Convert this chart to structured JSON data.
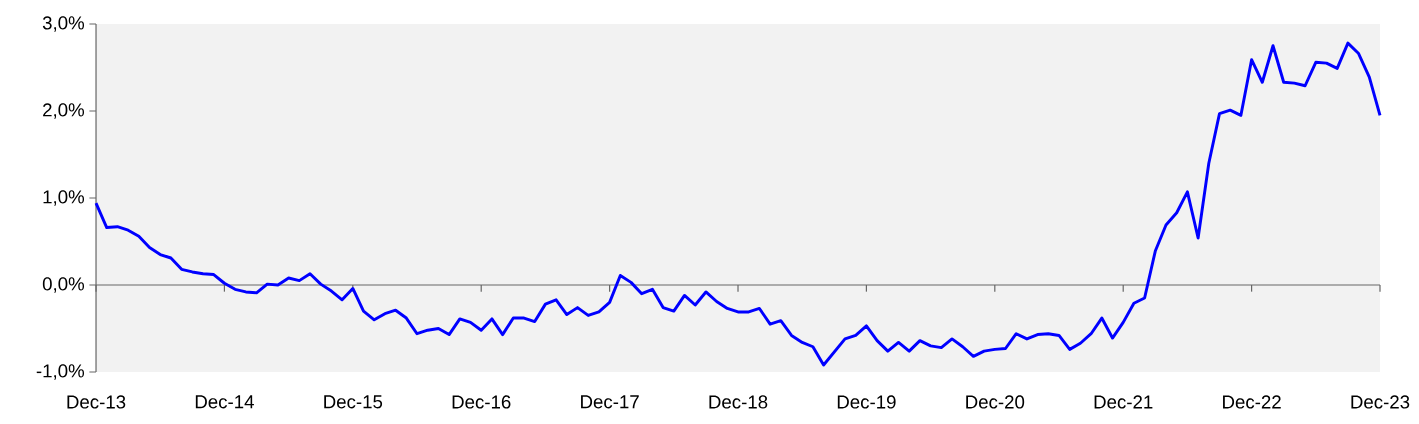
{
  "chart_data": {
    "type": "line",
    "x": [
      "2013-12",
      "2014-01",
      "2014-02",
      "2014-03",
      "2014-04",
      "2014-05",
      "2014-06",
      "2014-07",
      "2014-08",
      "2014-09",
      "2014-10",
      "2014-11",
      "2014-12",
      "2015-01",
      "2015-02",
      "2015-03",
      "2015-04",
      "2015-05",
      "2015-06",
      "2015-07",
      "2015-08",
      "2015-09",
      "2015-10",
      "2015-11",
      "2015-12",
      "2016-01",
      "2016-02",
      "2016-03",
      "2016-04",
      "2016-05",
      "2016-06",
      "2016-07",
      "2016-08",
      "2016-09",
      "2016-10",
      "2016-11",
      "2016-12",
      "2017-01",
      "2017-02",
      "2017-03",
      "2017-04",
      "2017-05",
      "2017-06",
      "2017-07",
      "2017-08",
      "2017-09",
      "2017-10",
      "2017-11",
      "2017-12",
      "2018-01",
      "2018-02",
      "2018-03",
      "2018-04",
      "2018-05",
      "2018-06",
      "2018-07",
      "2018-08",
      "2018-09",
      "2018-10",
      "2018-11",
      "2018-12",
      "2019-01",
      "2019-02",
      "2019-03",
      "2019-04",
      "2019-05",
      "2019-06",
      "2019-07",
      "2019-08",
      "2019-09",
      "2019-10",
      "2019-11",
      "2019-12",
      "2020-01",
      "2020-02",
      "2020-03",
      "2020-04",
      "2020-05",
      "2020-06",
      "2020-07",
      "2020-08",
      "2020-09",
      "2020-10",
      "2020-11",
      "2020-12",
      "2021-01",
      "2021-02",
      "2021-03",
      "2021-04",
      "2021-05",
      "2021-06",
      "2021-07",
      "2021-08",
      "2021-09",
      "2021-10",
      "2021-11",
      "2021-12",
      "2022-01",
      "2022-02",
      "2022-03",
      "2022-04",
      "2022-05",
      "2022-06",
      "2022-07",
      "2022-08",
      "2022-09",
      "2022-10",
      "2022-11",
      "2022-12",
      "2023-01",
      "2023-02",
      "2023-03",
      "2023-04",
      "2023-05",
      "2023-06",
      "2023-07",
      "2023-08",
      "2023-09",
      "2023-10",
      "2023-11",
      "2023-12"
    ],
    "values": [
      0.94,
      0.66,
      0.67,
      0.63,
      0.56,
      0.43,
      0.35,
      0.31,
      0.18,
      0.15,
      0.13,
      0.12,
      0.02,
      -0.05,
      -0.08,
      -0.09,
      0.01,
      0.0,
      0.08,
      0.05,
      0.13,
      0.01,
      -0.07,
      -0.17,
      -0.04,
      -0.3,
      -0.4,
      -0.33,
      -0.29,
      -0.38,
      -0.56,
      -0.52,
      -0.5,
      -0.57,
      -0.39,
      -0.43,
      -0.52,
      -0.39,
      -0.57,
      -0.38,
      -0.38,
      -0.42,
      -0.22,
      -0.17,
      -0.34,
      -0.26,
      -0.35,
      -0.31,
      -0.2,
      0.11,
      0.03,
      -0.1,
      -0.05,
      -0.26,
      -0.3,
      -0.12,
      -0.23,
      -0.08,
      -0.19,
      -0.27,
      -0.31,
      -0.31,
      -0.27,
      -0.45,
      -0.41,
      -0.58,
      -0.66,
      -0.71,
      -0.92,
      -0.77,
      -0.62,
      -0.58,
      -0.47,
      -0.64,
      -0.76,
      -0.66,
      -0.76,
      -0.64,
      -0.7,
      -0.72,
      -0.62,
      -0.71,
      -0.82,
      -0.76,
      -0.74,
      -0.73,
      -0.56,
      -0.62,
      -0.57,
      -0.56,
      -0.58,
      -0.74,
      -0.67,
      -0.56,
      -0.38,
      -0.61,
      -0.43,
      -0.21,
      -0.15,
      0.39,
      0.69,
      0.83,
      1.07,
      0.54,
      1.4,
      1.97,
      2.01,
      1.95,
      2.59,
      2.33,
      2.75,
      2.33,
      2.32,
      2.29,
      2.56,
      2.55,
      2.49,
      2.78,
      2.66,
      2.39,
      1.95
    ],
    "color": "#0000ff",
    "xlim": [
      "2013-12",
      "2023-12"
    ],
    "xticks": [
      {
        "value": "2013-12",
        "label": "Dec-13"
      },
      {
        "value": "2014-12",
        "label": "Dec-14"
      },
      {
        "value": "2015-12",
        "label": "Dec-15"
      },
      {
        "value": "2016-12",
        "label": "Dec-16"
      },
      {
        "value": "2017-12",
        "label": "Dec-17"
      },
      {
        "value": "2018-12",
        "label": "Dec-18"
      },
      {
        "value": "2019-12",
        "label": "Dec-19"
      },
      {
        "value": "2020-12",
        "label": "Dec-20"
      },
      {
        "value": "2021-12",
        "label": "Dec-21"
      },
      {
        "value": "2022-12",
        "label": "Dec-22"
      },
      {
        "value": "2023-12",
        "label": "Dec-23"
      }
    ],
    "ylim": [
      -1,
      3
    ],
    "yticks": [
      {
        "value": -1,
        "label": "-1,0%"
      },
      {
        "value": 0,
        "label": "0,0%"
      },
      {
        "value": 1,
        "label": "1,0%"
      },
      {
        "value": 2,
        "label": "2,0%"
      },
      {
        "value": 3,
        "label": "3,0%"
      }
    ]
  }
}
